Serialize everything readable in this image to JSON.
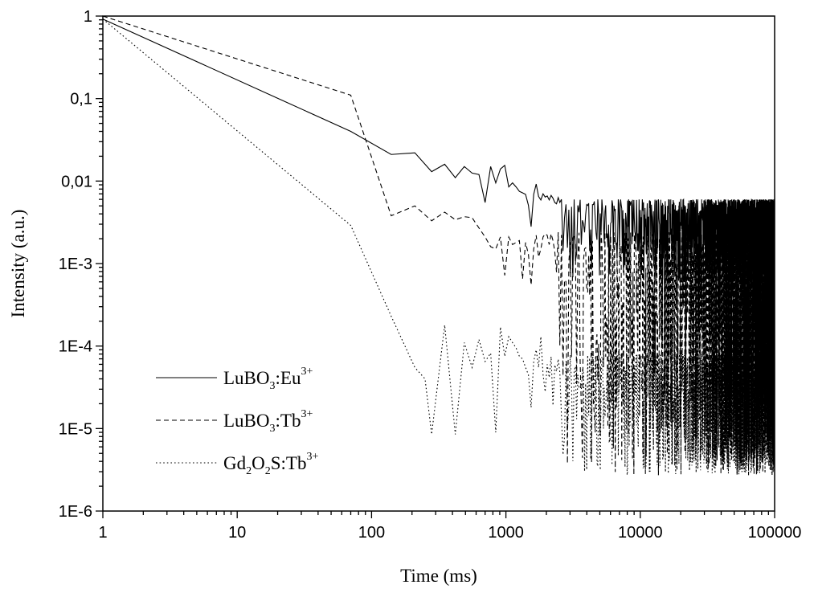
{
  "chart_data": {
    "type": "line",
    "xlabel": "Time (ms)",
    "ylabel": "Intensity (a.u.)",
    "x_scale": "log",
    "y_scale": "log",
    "xlim": [
      1,
      100000
    ],
    "ylim": [
      1e-06,
      1
    ],
    "x_ticks": [
      {
        "value": 1,
        "label": "1"
      },
      {
        "value": 10,
        "label": "10"
      },
      {
        "value": 100,
        "label": "100"
      },
      {
        "value": 1000,
        "label": "1000"
      },
      {
        "value": 10000,
        "label": "10000"
      },
      {
        "value": 100000,
        "label": "100000"
      }
    ],
    "y_ticks": [
      {
        "value": 1,
        "label": "1"
      },
      {
        "value": 0.1,
        "label": "0,1"
      },
      {
        "value": 0.01,
        "label": "0,01"
      },
      {
        "value": 0.001,
        "label": "1E-3"
      },
      {
        "value": 0.0001,
        "label": "1E-4"
      },
      {
        "value": 1e-05,
        "label": "1E-5"
      },
      {
        "value": 1e-06,
        "label": "1E-6"
      }
    ],
    "legend_position": "bottom-left",
    "series": [
      {
        "name": "LuBO3:Eu3+",
        "legend": {
          "base": "LuBO",
          "sub": "3",
          "mid": ":Eu",
          "sup": "3+"
        },
        "dash": "solid",
        "color": "#000000",
        "noise_range": [
          0.0006,
          0.006
        ],
        "x": [
          1,
          70,
          140,
          210,
          280,
          350,
          420,
          490,
          560,
          630,
          700,
          770,
          840,
          910,
          980,
          1050,
          1120,
          1190,
          1260,
          1330,
          1400,
          1470,
          1540,
          1610,
          1680,
          1750,
          1820,
          1890,
          1960,
          2030,
          2100,
          2170,
          2240,
          2310,
          2380,
          2450,
          2520
        ],
        "y": [
          0.92,
          0.04,
          0.021,
          0.022,
          0.013,
          0.016,
          0.011,
          0.015,
          0.0125,
          0.012,
          0.0055,
          0.015,
          0.0095,
          0.014,
          0.0155,
          0.0085,
          0.0095,
          0.0085,
          0.0075,
          0.0072,
          0.0069,
          0.0051,
          0.0028,
          0.0069,
          0.0092,
          0.0065,
          0.0059,
          0.007,
          0.0064,
          0.0066,
          0.0059,
          0.0067,
          0.0062,
          0.0055,
          0.0053,
          0.0063,
          0.0055
        ]
      },
      {
        "name": "LuBO3:Tb3+",
        "legend": {
          "base": "LuBO",
          "sub": "3",
          "mid": ":Tb",
          "sup": "3+"
        },
        "dash": "6,4",
        "color": "#000000",
        "noise_range": [
          2.7e-06,
          0.0024
        ],
        "x": [
          1,
          70,
          140,
          210,
          280,
          350,
          420,
          490,
          560,
          630,
          700,
          770,
          840,
          910,
          980,
          1050,
          1120,
          1190,
          1260,
          1330,
          1400,
          1470,
          1540,
          1610,
          1680,
          1750,
          1820,
          1890,
          1960,
          2030,
          2100,
          2170,
          2240
        ],
        "y": [
          1,
          0.11,
          0.0038,
          0.005,
          0.0033,
          0.0042,
          0.0034,
          0.0037,
          0.0036,
          0.0027,
          0.0021,
          0.0016,
          0.0015,
          0.0021,
          0.00072,
          0.0021,
          0.0017,
          0.0018,
          0.0019,
          0.00065,
          0.0018,
          0.0013,
          0.00055,
          0.0015,
          0.0022,
          0.0012,
          0.0015,
          0.0021,
          0.0023,
          0.0022,
          0.0017,
          0.0023,
          0.0019
        ]
      },
      {
        "name": "Gd2O2S:Tb3+",
        "legend": {
          "base": "Gd",
          "sub": "2",
          "mid": "O",
          "sub2": "2",
          "mid2": "S:Tb",
          "sup": "3+"
        },
        "dash": "1.6,3",
        "color": "#000000",
        "noise_range": [
          2.7e-06,
          8e-05
        ],
        "x": [
          1,
          70,
          140,
          210,
          250,
          280,
          350,
          420,
          490,
          560,
          630,
          700,
          770,
          840,
          910,
          980,
          1050,
          1120,
          1190,
          1260,
          1330,
          1400,
          1470,
          1540,
          1610,
          1680,
          1750,
          1820,
          1890,
          1960,
          2030
        ],
        "y": [
          0.92,
          0.0029,
          0.00023,
          5.5e-05,
          4e-05,
          8.5e-06,
          0.00018,
          8.5e-06,
          0.00011,
          5.5e-05,
          0.00012,
          6.5e-05,
          8.2e-05,
          9e-06,
          0.00017,
          7.5e-05,
          0.00013,
          0.00011,
          9.5e-05,
          7.5e-05,
          7e-05,
          5.5e-05,
          4.5e-05,
          1.8e-05,
          6.5e-05,
          9e-05,
          5.5e-05,
          0.00013,
          4.5e-05,
          2.8e-05,
          6e-05
        ]
      }
    ]
  }
}
